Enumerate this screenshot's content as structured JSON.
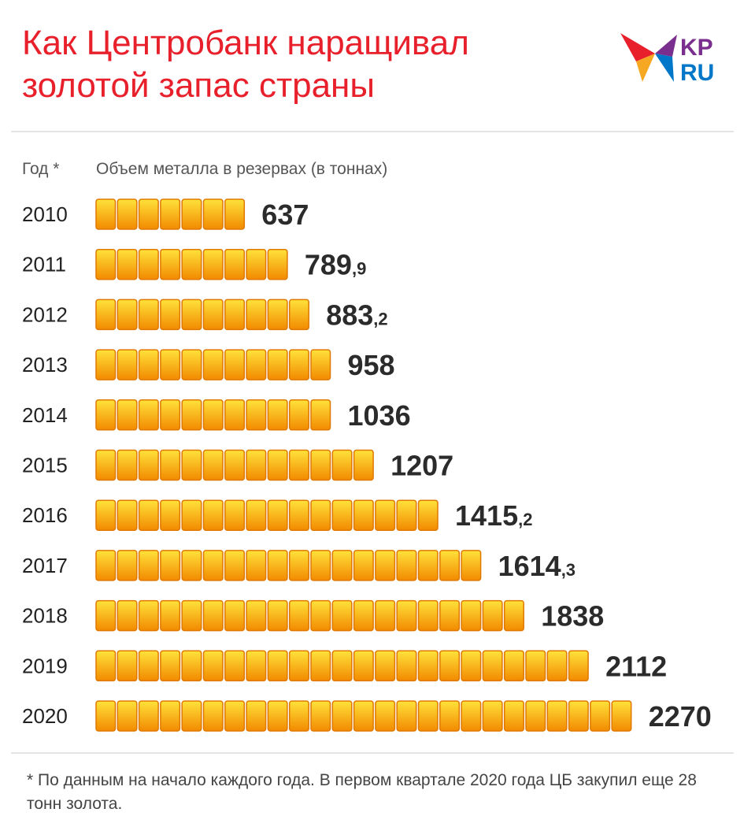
{
  "title": {
    "line1": "Как Центробанк наращивал",
    "line2": "золотой запас страны"
  },
  "logo": {
    "text_top": "KP",
    "text_bottom": "RU",
    "icon": "swallow-bird-icon",
    "colors": [
      "#e8202b",
      "#f7a823",
      "#7a2f8f",
      "#0077c8"
    ]
  },
  "headers": {
    "year": "Год *",
    "metal": "Объем металла в резервах (в тоннах)"
  },
  "chart_data": {
    "type": "bar",
    "orientation": "horizontal",
    "categories": [
      "2010",
      "2011",
      "2012",
      "2013",
      "2014",
      "2015",
      "2016",
      "2017",
      "2018",
      "2019",
      "2020"
    ],
    "values": [
      637,
      789.9,
      883.2,
      958,
      1036,
      1207,
      1415.2,
      1614.3,
      1838,
      2112,
      2270
    ],
    "labels": [
      {
        "int": "637",
        "frac": ""
      },
      {
        "int": "789",
        "frac": ",9"
      },
      {
        "int": "883",
        "frac": ",2"
      },
      {
        "int": "958",
        "frac": ""
      },
      {
        "int": "1036",
        "frac": ""
      },
      {
        "int": "1207",
        "frac": ""
      },
      {
        "int": "1415",
        "frac": ",2"
      },
      {
        "int": "1614",
        "frac": ",3"
      },
      {
        "int": "1838",
        "frac": ""
      },
      {
        "int": "2112",
        "frac": ""
      },
      {
        "int": "2270",
        "frac": ""
      }
    ],
    "bar_style": "stacked gold ingots",
    "tonnes_per_ingot": 91,
    "colors": {
      "ingot_light": "#ffe23a",
      "ingot_dark": "#f28a00",
      "ingot_border": "#e07800"
    }
  },
  "footnote": "* По данным на начало каждого года. В первом квартале 2020 года ЦБ закупил еще 28 тонн золота."
}
